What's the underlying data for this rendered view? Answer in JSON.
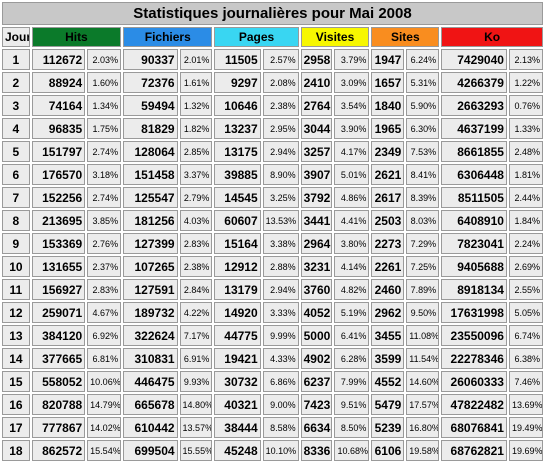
{
  "title": "Statistiques journalières pour Mai 2008",
  "columns": {
    "jour": "Jour",
    "hits": "Hits",
    "fichiers": "Fichiers",
    "pages": "Pages",
    "visites": "Visites",
    "sites": "Sites",
    "ko": "Ko"
  },
  "colors": {
    "hits": "#0b7a2a",
    "fichiers": "#2b8ce6",
    "pages": "#39d6f2",
    "visites": "#f7f700",
    "sites": "#f98d1f",
    "ko": "#f01414"
  },
  "rows": [
    {
      "day": "1",
      "hits": "112672",
      "hits_pct": "2.03%",
      "fichiers": "90337",
      "fichiers_pct": "2.01%",
      "pages": "11505",
      "pages_pct": "2.57%",
      "visites": "2958",
      "visites_pct": "3.79%",
      "sites": "1947",
      "sites_pct": "6.24%",
      "ko": "7429040",
      "ko_pct": "2.13%"
    },
    {
      "day": "2",
      "hits": "88924",
      "hits_pct": "1.60%",
      "fichiers": "72376",
      "fichiers_pct": "1.61%",
      "pages": "9297",
      "pages_pct": "2.08%",
      "visites": "2410",
      "visites_pct": "3.09%",
      "sites": "1657",
      "sites_pct": "5.31%",
      "ko": "4266379",
      "ko_pct": "1.22%"
    },
    {
      "day": "3",
      "hits": "74164",
      "hits_pct": "1.34%",
      "fichiers": "59494",
      "fichiers_pct": "1.32%",
      "pages": "10646",
      "pages_pct": "2.38%",
      "visites": "2764",
      "visites_pct": "3.54%",
      "sites": "1840",
      "sites_pct": "5.90%",
      "ko": "2663293",
      "ko_pct": "0.76%"
    },
    {
      "day": "4",
      "hits": "96835",
      "hits_pct": "1.75%",
      "fichiers": "81829",
      "fichiers_pct": "1.82%",
      "pages": "13237",
      "pages_pct": "2.95%",
      "visites": "3044",
      "visites_pct": "3.90%",
      "sites": "1965",
      "sites_pct": "6.30%",
      "ko": "4637199",
      "ko_pct": "1.33%"
    },
    {
      "day": "5",
      "hits": "151797",
      "hits_pct": "2.74%",
      "fichiers": "128064",
      "fichiers_pct": "2.85%",
      "pages": "13175",
      "pages_pct": "2.94%",
      "visites": "3257",
      "visites_pct": "4.17%",
      "sites": "2349",
      "sites_pct": "7.53%",
      "ko": "8661855",
      "ko_pct": "2.48%"
    },
    {
      "day": "6",
      "hits": "176570",
      "hits_pct": "3.18%",
      "fichiers": "151458",
      "fichiers_pct": "3.37%",
      "pages": "39885",
      "pages_pct": "8.90%",
      "visites": "3907",
      "visites_pct": "5.01%",
      "sites": "2621",
      "sites_pct": "8.41%",
      "ko": "6306448",
      "ko_pct": "1.81%"
    },
    {
      "day": "7",
      "hits": "152256",
      "hits_pct": "2.74%",
      "fichiers": "125547",
      "fichiers_pct": "2.79%",
      "pages": "14545",
      "pages_pct": "3.25%",
      "visites": "3792",
      "visites_pct": "4.86%",
      "sites": "2617",
      "sites_pct": "8.39%",
      "ko": "8511505",
      "ko_pct": "2.44%"
    },
    {
      "day": "8",
      "hits": "213695",
      "hits_pct": "3.85%",
      "fichiers": "181256",
      "fichiers_pct": "4.03%",
      "pages": "60607",
      "pages_pct": "13.53%",
      "visites": "3441",
      "visites_pct": "4.41%",
      "sites": "2503",
      "sites_pct": "8.03%",
      "ko": "6408910",
      "ko_pct": "1.84%"
    },
    {
      "day": "9",
      "hits": "153369",
      "hits_pct": "2.76%",
      "fichiers": "127399",
      "fichiers_pct": "2.83%",
      "pages": "15164",
      "pages_pct": "3.38%",
      "visites": "2964",
      "visites_pct": "3.80%",
      "sites": "2273",
      "sites_pct": "7.29%",
      "ko": "7823041",
      "ko_pct": "2.24%"
    },
    {
      "day": "10",
      "hits": "131655",
      "hits_pct": "2.37%",
      "fichiers": "107265",
      "fichiers_pct": "2.38%",
      "pages": "12912",
      "pages_pct": "2.88%",
      "visites": "3231",
      "visites_pct": "4.14%",
      "sites": "2261",
      "sites_pct": "7.25%",
      "ko": "9405688",
      "ko_pct": "2.69%"
    },
    {
      "day": "11",
      "hits": "156927",
      "hits_pct": "2.83%",
      "fichiers": "127591",
      "fichiers_pct": "2.84%",
      "pages": "13179",
      "pages_pct": "2.94%",
      "visites": "3760",
      "visites_pct": "4.82%",
      "sites": "2460",
      "sites_pct": "7.89%",
      "ko": "8918134",
      "ko_pct": "2.55%"
    },
    {
      "day": "12",
      "hits": "259071",
      "hits_pct": "4.67%",
      "fichiers": "189732",
      "fichiers_pct": "4.22%",
      "pages": "14920",
      "pages_pct": "3.33%",
      "visites": "4052",
      "visites_pct": "5.19%",
      "sites": "2962",
      "sites_pct": "9.50%",
      "ko": "17631998",
      "ko_pct": "5.05%"
    },
    {
      "day": "13",
      "hits": "384120",
      "hits_pct": "6.92%",
      "fichiers": "322624",
      "fichiers_pct": "7.17%",
      "pages": "44775",
      "pages_pct": "9.99%",
      "visites": "5000",
      "visites_pct": "6.41%",
      "sites": "3455",
      "sites_pct": "11.08%",
      "ko": "23550096",
      "ko_pct": "6.74%"
    },
    {
      "day": "14",
      "hits": "377665",
      "hits_pct": "6.81%",
      "fichiers": "310831",
      "fichiers_pct": "6.91%",
      "pages": "19421",
      "pages_pct": "4.33%",
      "visites": "4902",
      "visites_pct": "6.28%",
      "sites": "3599",
      "sites_pct": "11.54%",
      "ko": "22278346",
      "ko_pct": "6.38%"
    },
    {
      "day": "15",
      "hits": "558052",
      "hits_pct": "10.06%",
      "fichiers": "446475",
      "fichiers_pct": "9.93%",
      "pages": "30732",
      "pages_pct": "6.86%",
      "visites": "6237",
      "visites_pct": "7.99%",
      "sites": "4552",
      "sites_pct": "14.60%",
      "ko": "26060333",
      "ko_pct": "7.46%"
    },
    {
      "day": "16",
      "hits": "820788",
      "hits_pct": "14.79%",
      "fichiers": "665678",
      "fichiers_pct": "14.80%",
      "pages": "40321",
      "pages_pct": "9.00%",
      "visites": "7423",
      "visites_pct": "9.51%",
      "sites": "5479",
      "sites_pct": "17.57%",
      "ko": "47822482",
      "ko_pct": "13.69%"
    },
    {
      "day": "17",
      "hits": "777867",
      "hits_pct": "14.02%",
      "fichiers": "610442",
      "fichiers_pct": "13.57%",
      "pages": "38444",
      "pages_pct": "8.58%",
      "visites": "6634",
      "visites_pct": "8.50%",
      "sites": "5239",
      "sites_pct": "16.80%",
      "ko": "68076841",
      "ko_pct": "19.49%"
    },
    {
      "day": "18",
      "hits": "862572",
      "hits_pct": "15.54%",
      "fichiers": "699504",
      "fichiers_pct": "15.55%",
      "pages": "45248",
      "pages_pct": "10.10%",
      "visites": "8336",
      "visites_pct": "10.68%",
      "sites": "6106",
      "sites_pct": "19.58%",
      "ko": "68762821",
      "ko_pct": "19.69%"
    }
  ]
}
